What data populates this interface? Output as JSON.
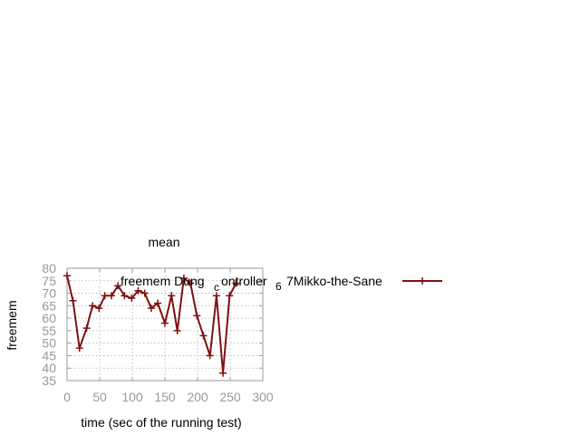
{
  "chart_data": {
    "type": "line",
    "title": "mean",
    "xlabel": "time (sec of the running test)",
    "ylabel": "freemem",
    "xlim": [
      0,
      300
    ],
    "ylim": [
      35,
      80
    ],
    "xticks": [
      "0",
      "50",
      "100",
      "150",
      "200",
      "250",
      "300"
    ],
    "yticks": [
      "35",
      "40",
      "45",
      "50",
      "55",
      "60",
      "65",
      "70",
      "75",
      "80"
    ],
    "grid": true,
    "legend_position": "top-right",
    "colors": {
      "series": "#7f1010"
    },
    "legend_parts": [
      "freemem Dung",
      "ontroller",
      "c",
      "6",
      "7Mikko-the-Sane"
    ],
    "series": [
      {
        "name": "freemem Dung ontroller c 6 7Mikko-the-Sane",
        "x": [
          0,
          9,
          19,
          30,
          39,
          49,
          58,
          68,
          78,
          88,
          99,
          109,
          119,
          129,
          139,
          150,
          160,
          169,
          179,
          189,
          199,
          209,
          219,
          229,
          239,
          249,
          259
        ],
        "y": [
          77,
          67,
          48,
          56,
          65,
          64,
          69,
          69,
          73,
          69,
          68,
          71,
          70,
          64,
          66,
          58,
          69,
          55,
          76,
          74,
          61,
          53,
          45,
          69,
          38,
          69,
          74
        ]
      }
    ]
  }
}
